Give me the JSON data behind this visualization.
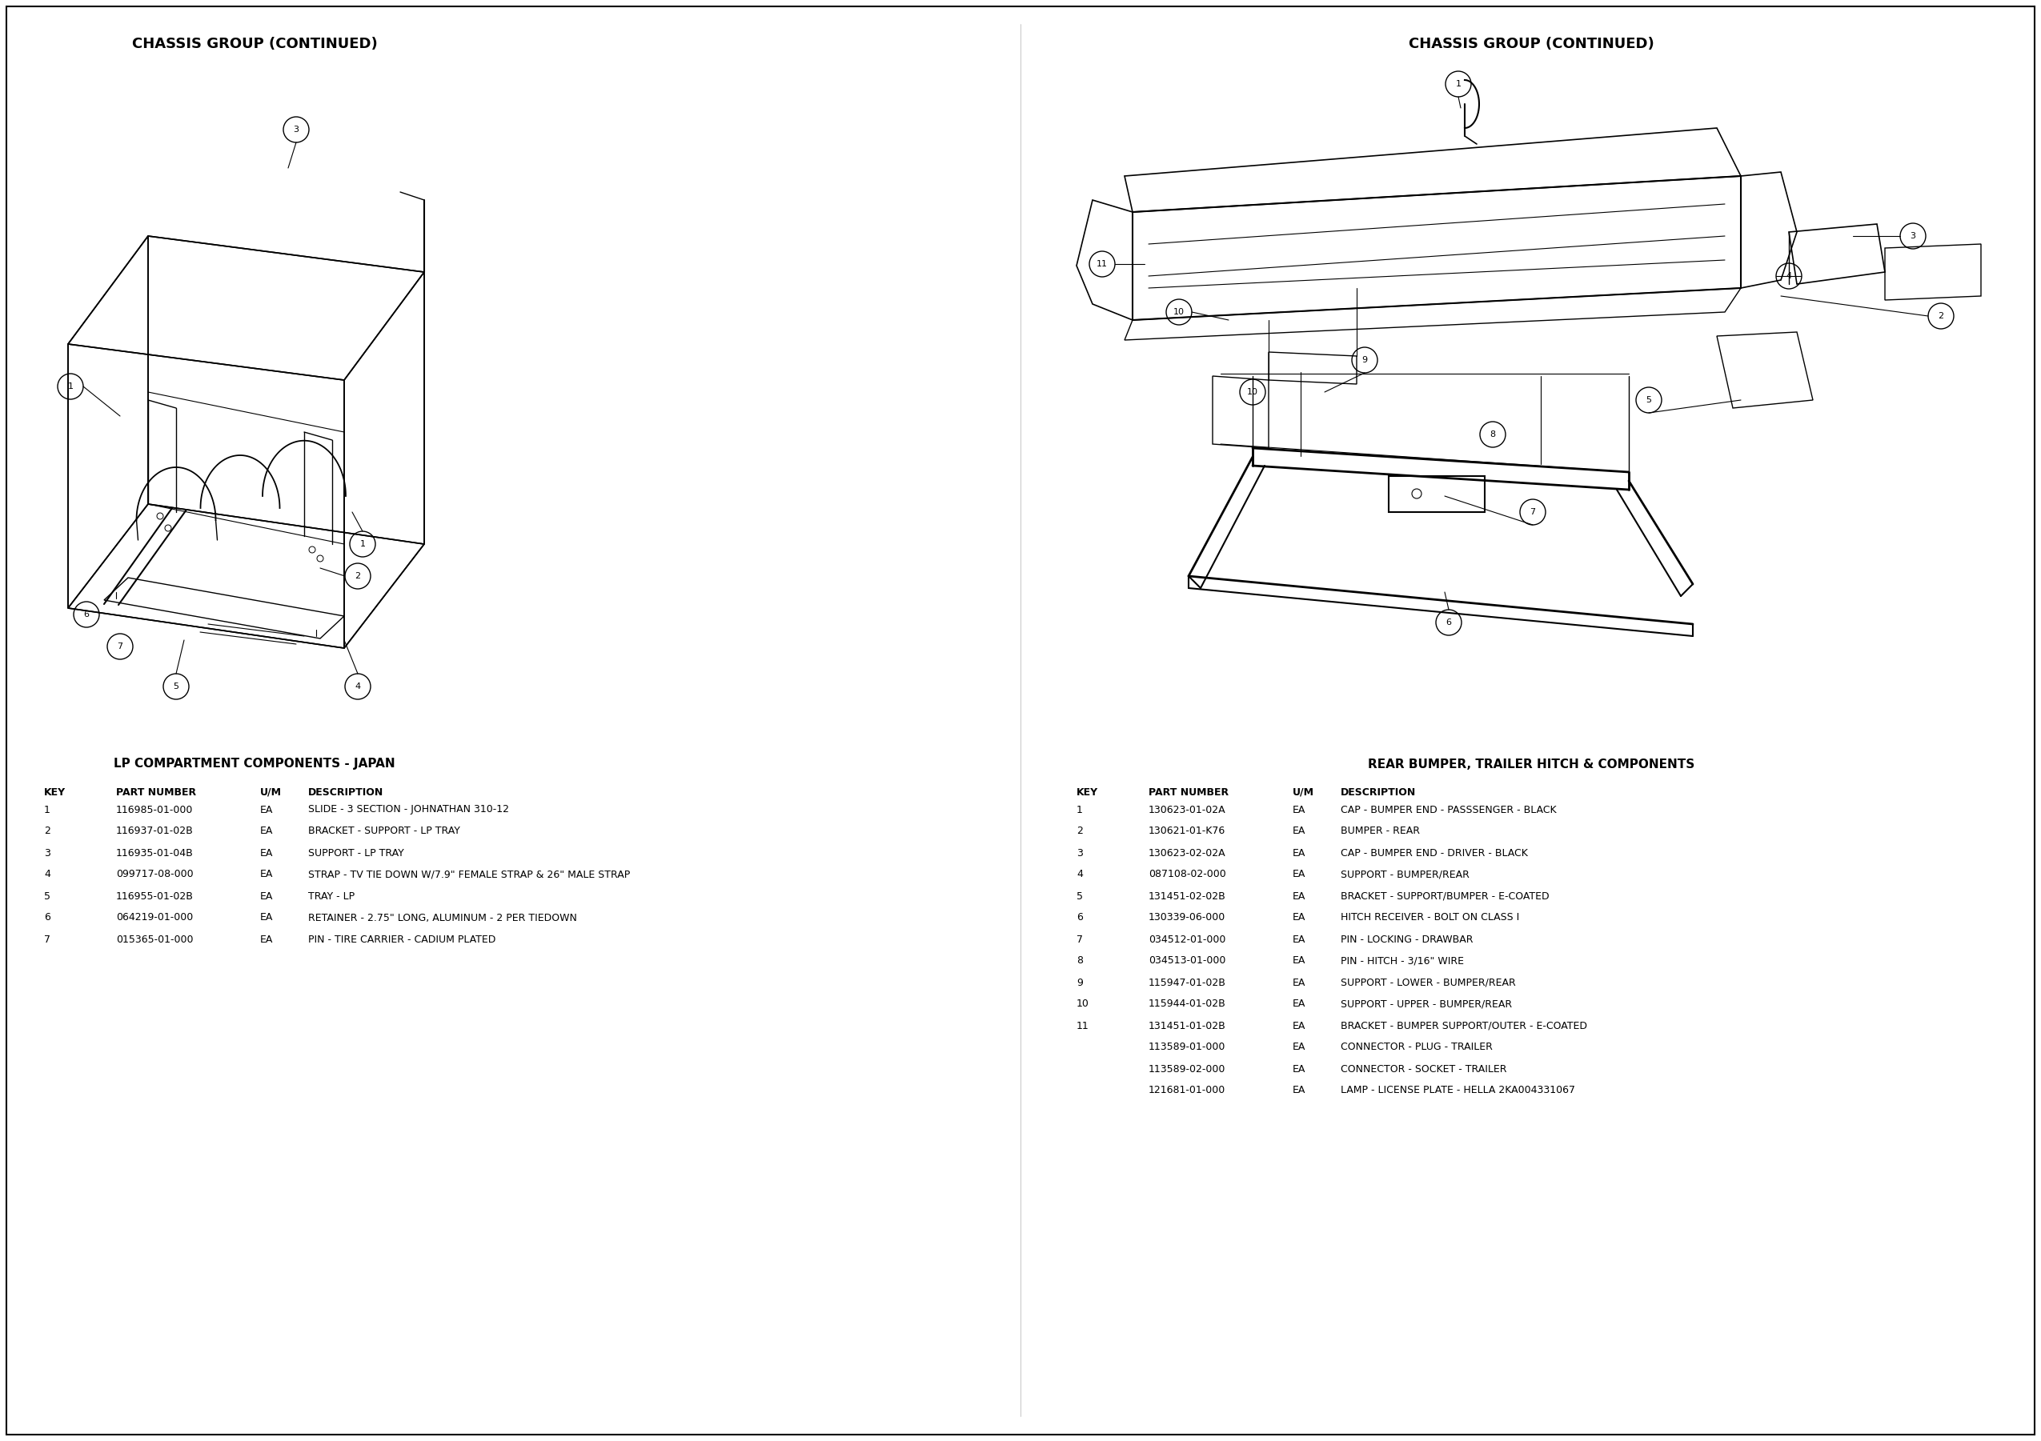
{
  "title_left": "CHASSIS GROUP (CONTINUED)",
  "title_right": "CHASSIS GROUP (CONTINUED)",
  "subtitle_left": "LP COMPARTMENT COMPONENTS - JAPAN",
  "subtitle_right": "REAR BUMPER, TRAILER HITCH & COMPONENTS",
  "table_left": [
    [
      "1",
      "116985-01-000",
      "EA",
      "SLIDE - 3 SECTION - JOHNATHAN 310-12"
    ],
    [
      "2",
      "116937-01-02B",
      "EA",
      "BRACKET - SUPPORT - LP TRAY"
    ],
    [
      "3",
      "116935-01-04B",
      "EA",
      "SUPPORT - LP TRAY"
    ],
    [
      "4",
      "099717-08-000",
      "EA",
      "STRAP - TV TIE DOWN W/7.9\" FEMALE STRAP & 26\" MALE STRAP"
    ],
    [
      "5",
      "116955-01-02B",
      "EA",
      "TRAY - LP"
    ],
    [
      "6",
      "064219-01-000",
      "EA",
      "RETAINER - 2.75\" LONG, ALUMINUM - 2 PER TIEDOWN"
    ],
    [
      "7",
      "015365-01-000",
      "EA",
      "PIN - TIRE CARRIER - CADIUM PLATED"
    ]
  ],
  "table_right": [
    [
      "1",
      "130623-01-02A",
      "EA",
      "CAP - BUMPER END - PASSSENGER - BLACK"
    ],
    [
      "2",
      "130621-01-K76",
      "EA",
      "BUMPER - REAR"
    ],
    [
      "3",
      "130623-02-02A",
      "EA",
      "CAP - BUMPER END - DRIVER - BLACK"
    ],
    [
      "4",
      "087108-02-000",
      "EA",
      "SUPPORT - BUMPER/REAR"
    ],
    [
      "5",
      "131451-02-02B",
      "EA",
      "BRACKET - SUPPORT/BUMPER - E-COATED"
    ],
    [
      "6",
      "130339-06-000",
      "EA",
      "HITCH RECEIVER - BOLT ON CLASS I"
    ],
    [
      "7",
      "034512-01-000",
      "EA",
      "PIN - LOCKING - DRAWBAR"
    ],
    [
      "8",
      "034513-01-000",
      "EA",
      "PIN - HITCH - 3/16\" WIRE"
    ],
    [
      "9",
      "115947-01-02B",
      "EA",
      "SUPPORT - LOWER - BUMPER/REAR"
    ],
    [
      "10",
      "115944-01-02B",
      "EA",
      "SUPPORT - UPPER - BUMPER/REAR"
    ],
    [
      "11",
      "131451-01-02B",
      "EA",
      "BRACKET - BUMPER SUPPORT/OUTER - E-COATED"
    ],
    [
      "",
      "113589-01-000",
      "EA",
      "CONNECTOR - PLUG - TRAILER"
    ],
    [
      "",
      "113589-02-000",
      "EA",
      "CONNECTOR - SOCKET - TRAILER"
    ],
    [
      "",
      "121681-01-000",
      "EA",
      "LAMP - LICENSE PLATE - HELLA 2KA004331067"
    ]
  ],
  "bg_color": "#ffffff"
}
